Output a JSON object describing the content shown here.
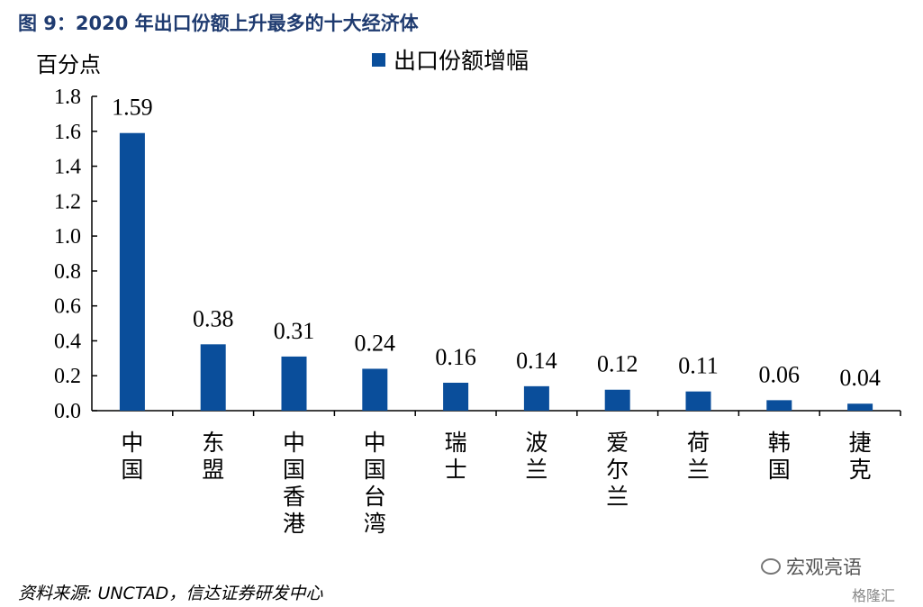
{
  "title": "图 9：2020 年出口份额上升最多的十大经济体",
  "source": "资料来源: UNCTAD，信达证券研发中心",
  "watermark": "宏观亮语",
  "watermark2": "格隆汇",
  "colors": {
    "bar": "#0a4e9b",
    "title": "#1f3b70"
  },
  "chart_data": {
    "type": "bar",
    "title": "图 9：2020 年出口份额上升最多的十大经济体",
    "ylabel": "百分点",
    "xlabel": "",
    "categories": [
      "中国",
      "东盟",
      "中国香港",
      "中国台湾",
      "瑞士",
      "波兰",
      "爱尔兰",
      "荷兰",
      "韩国",
      "捷克"
    ],
    "series": [
      {
        "name": "出口份额增幅",
        "values": [
          1.59,
          0.38,
          0.31,
          0.24,
          0.16,
          0.14,
          0.12,
          0.11,
          0.06,
          0.04
        ]
      }
    ],
    "value_labels": [
      "1.59",
      "0.38",
      "0.31",
      "0.24",
      "0.16",
      "0.14",
      "0.12",
      "0.11",
      "0.06",
      "0.04"
    ],
    "ylim": [
      0,
      1.8
    ],
    "yticks": [
      "0.0",
      "0.2",
      "0.4",
      "0.6",
      "0.8",
      "1.0",
      "1.2",
      "1.4",
      "1.6",
      "1.8"
    ],
    "grid": false,
    "legend_position": "top-center"
  }
}
